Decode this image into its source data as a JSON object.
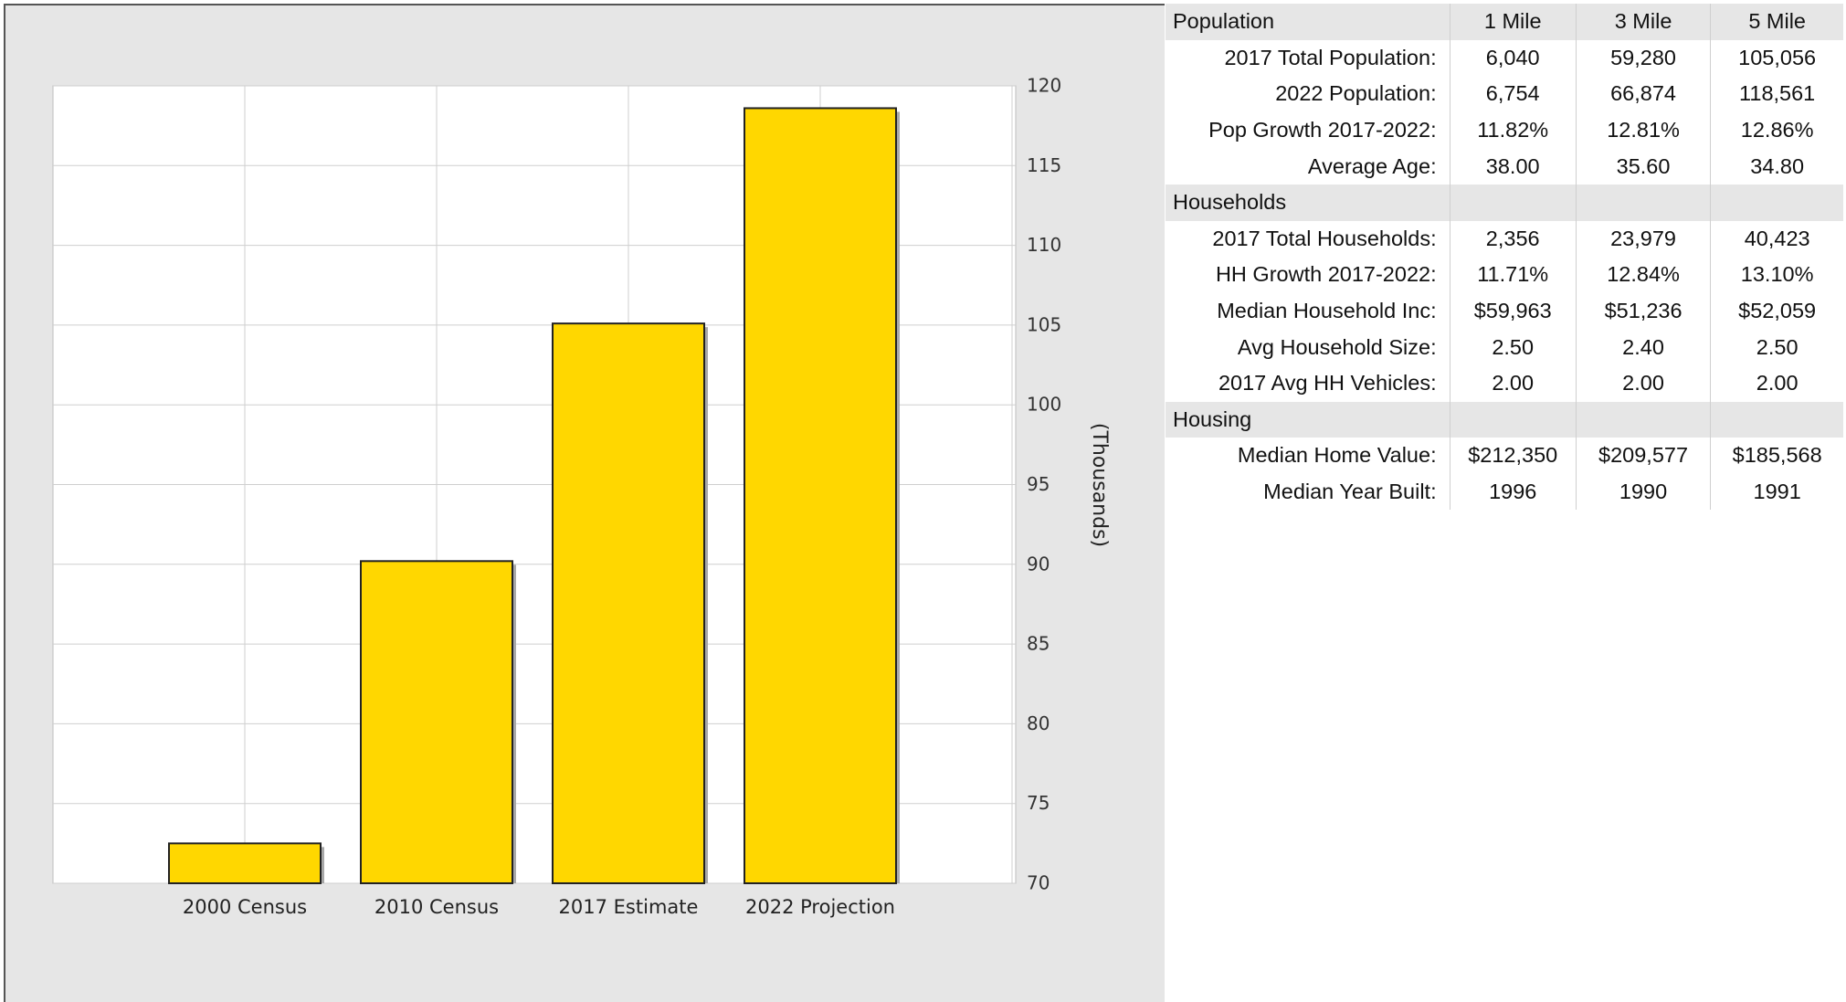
{
  "chart_data": {
    "type": "bar",
    "categories": [
      "2000 Census",
      "2010 Census",
      "2017 Estimate",
      "2022 Projection"
    ],
    "values": [
      72.5,
      90.2,
      105.1,
      118.6
    ],
    "ylabel": "(Thousands)",
    "ylim": [
      70,
      120
    ],
    "yticks": [
      70,
      75,
      80,
      85,
      90,
      95,
      100,
      105,
      110,
      115,
      120
    ],
    "bar_color": "#ffd700",
    "grid": true,
    "y_axis_side": "right"
  },
  "table": {
    "header": {
      "label": "Population",
      "c1": "1 Mile",
      "c2": "3 Mile",
      "c3": "5 Mile"
    },
    "rows": [
      {
        "label": "2017 Total Population:",
        "c1": "6,040",
        "c2": "59,280",
        "c3": "105,056"
      },
      {
        "label": "2022 Population:",
        "c1": "6,754",
        "c2": "66,874",
        "c3": "118,561"
      },
      {
        "label": "Pop Growth 2017-2022:",
        "c1": "11.82%",
        "c2": "12.81%",
        "c3": "12.86%"
      },
      {
        "label": "Average Age:",
        "c1": "38.00",
        "c2": "35.60",
        "c3": "34.80"
      },
      {
        "section": "Households"
      },
      {
        "label": "2017 Total Households:",
        "c1": "2,356",
        "c2": "23,979",
        "c3": "40,423"
      },
      {
        "label": "HH Growth 2017-2022:",
        "c1": "11.71%",
        "c2": "12.84%",
        "c3": "13.10%"
      },
      {
        "label": "Median Household Inc:",
        "c1": "$59,963",
        "c2": "$51,236",
        "c3": "$52,059"
      },
      {
        "label": "Avg Household Size:",
        "c1": "2.50",
        "c2": "2.40",
        "c3": "2.50"
      },
      {
        "label": "2017 Avg HH Vehicles:",
        "c1": "2.00",
        "c2": "2.00",
        "c3": "2.00"
      },
      {
        "section": "Housing"
      },
      {
        "label": "Median Home Value:",
        "c1": "$212,350",
        "c2": "$209,577",
        "c3": "$185,568"
      },
      {
        "label": "Median Year Built:",
        "c1": "1996",
        "c2": "1990",
        "c3": "1991"
      }
    ]
  }
}
